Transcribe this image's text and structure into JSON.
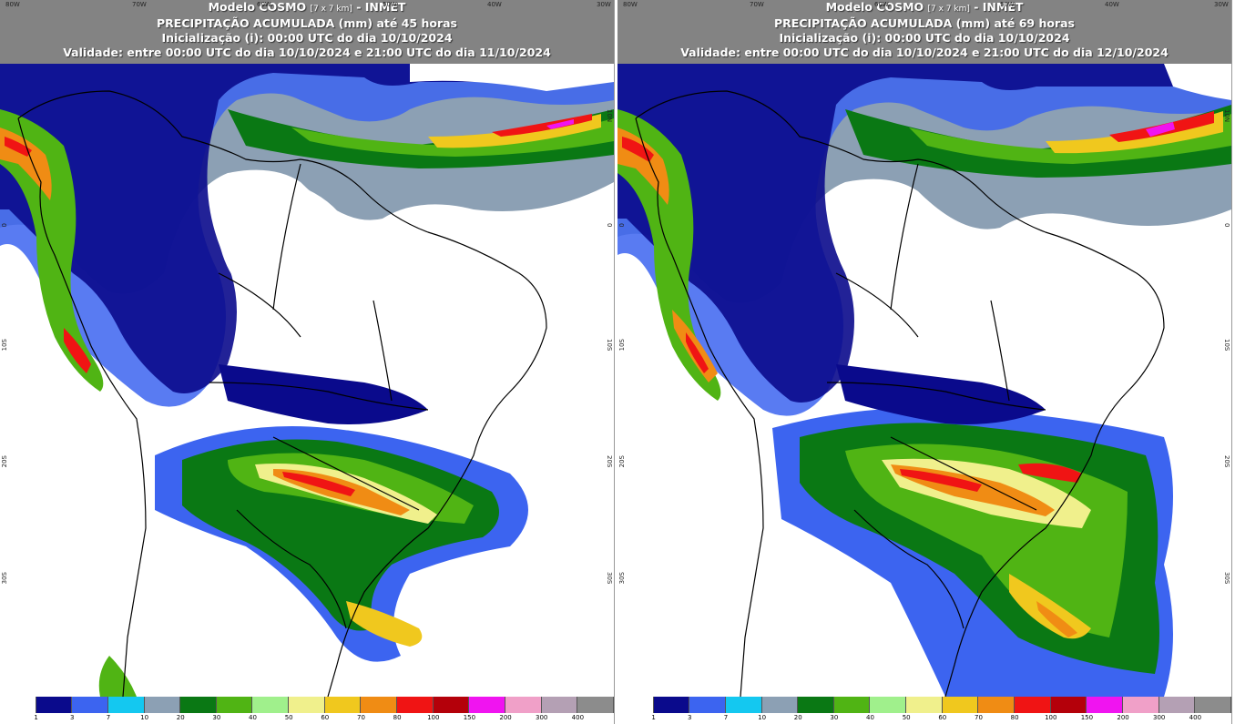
{
  "panels": [
    {
      "line1": "Modelo COSMO",
      "line1_small": "[7 x 7 km]",
      "line1_tail": "- INMET",
      "line2": "PRECIPITAÇÃO ACUMULADA (mm) até 45 horas",
      "line3": "Inicialização (i): 00:00 UTC do dia 10/10/2024",
      "line4": "Validade: entre 00:00 UTC do dia 10/10/2024 e 21:00 UTC do dia 11/10/2024"
    },
    {
      "line1": "Modelo COSMO",
      "line1_small": "[7 x 7 km]",
      "line1_tail": "- INMET",
      "line2": "PRECIPITAÇÃO ACUMULADA (mm) até 69 horas",
      "line3": "Inicialização (i): 00:00 UTC do dia 10/10/2024",
      "line4": "Validade: entre 00:00 UTC do dia 10/10/2024 e 21:00 UTC do dia 12/10/2024"
    }
  ],
  "lon_labels": [
    "80W",
    "70W",
    "60W",
    "50W",
    "40W",
    "30W"
  ],
  "lat_labels": [
    "10N",
    "0",
    "10S",
    "20S",
    "30S"
  ],
  "legend": {
    "colors": [
      "#ffffff",
      "#0a0a8c",
      "#3c64f0",
      "#14c8f0",
      "#8ca0b4",
      "#0a7814",
      "#50b414",
      "#a0f08c",
      "#f0f08c",
      "#f0c81e",
      "#f08c14",
      "#f01414",
      "#b4000a",
      "#f014f0",
      "#f0a0c8",
      "#b4a0b4",
      "#8c8c8c"
    ],
    "ticks": [
      "1",
      "3",
      "7",
      "10",
      "20",
      "30",
      "40",
      "50",
      "60",
      "70",
      "80",
      "100",
      "150",
      "200",
      "300",
      "400"
    ]
  },
  "precip_colors": {
    "c1": "#0a0a8c",
    "c3": "#3c64f0",
    "c7": "#14c8f0",
    "c10": "#8ca0b4",
    "c20": "#0a7814",
    "c30": "#50b414",
    "c40": "#a0f08c",
    "c50": "#f0f08c",
    "c70": "#f08c14",
    "c80": "#f01414",
    "c150": "#f014f0"
  }
}
